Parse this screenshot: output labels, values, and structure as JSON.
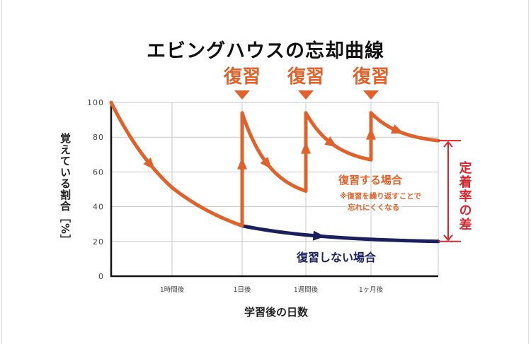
{
  "chart_data": {
    "type": "line",
    "title": "エビングハウスの忘却曲線",
    "xlabel": "学習後の日数",
    "ylabel": "覚えている割合［%］",
    "ylim": [
      0,
      100
    ],
    "yticks": [
      0,
      20,
      40,
      60,
      80,
      100
    ],
    "xticks": [
      {
        "x": 1,
        "label": "1時間後"
      },
      {
        "x": 2,
        "label": "1日後"
      },
      {
        "x": 3,
        "label": "1週間後"
      },
      {
        "x": 4,
        "label": "1ヶ月後"
      }
    ],
    "xlim": [
      0,
      5
    ],
    "grid": true,
    "review_markers": [
      {
        "x": 2,
        "label": "復習"
      },
      {
        "x": 3,
        "label": "復習"
      },
      {
        "x": 4,
        "label": "復習"
      }
    ],
    "series": [
      {
        "name": "復習しない場合",
        "color": "#1b1f5e",
        "points": [
          [
            0,
            100
          ],
          [
            1,
            55
          ],
          [
            2,
            29
          ],
          [
            3,
            24
          ],
          [
            4,
            21
          ],
          [
            5,
            20
          ]
        ]
      },
      {
        "name": "復習する場合",
        "color": "#e0612a",
        "segments": [
          {
            "from": [
              0,
              100
            ],
            "to": [
              2,
              29
            ]
          },
          {
            "jump": [
              2,
              29,
              94
            ]
          },
          {
            "from": [
              2,
              94
            ],
            "to": [
              3,
              49
            ]
          },
          {
            "jump": [
              3,
              49,
              94
            ]
          },
          {
            "from": [
              3,
              94
            ],
            "to": [
              4,
              67
            ]
          },
          {
            "jump": [
              4,
              67,
              94
            ]
          },
          {
            "from": [
              4,
              94
            ],
            "to": [
              5,
              78
            ]
          }
        ]
      }
    ],
    "annotations": {
      "review_label": "復習する場合",
      "review_note_1": "※復習を繰り返すことで",
      "review_note_2": "忘れにくくなる",
      "no_review_label": "復習しない場合",
      "difference_label": "定着率の差",
      "difference_range": [
        20,
        78
      ]
    }
  },
  "colors": {
    "orange": "#e0612a",
    "navy": "#1b1f5e",
    "red": "#d8262e",
    "grid": "#c8c8c8"
  }
}
